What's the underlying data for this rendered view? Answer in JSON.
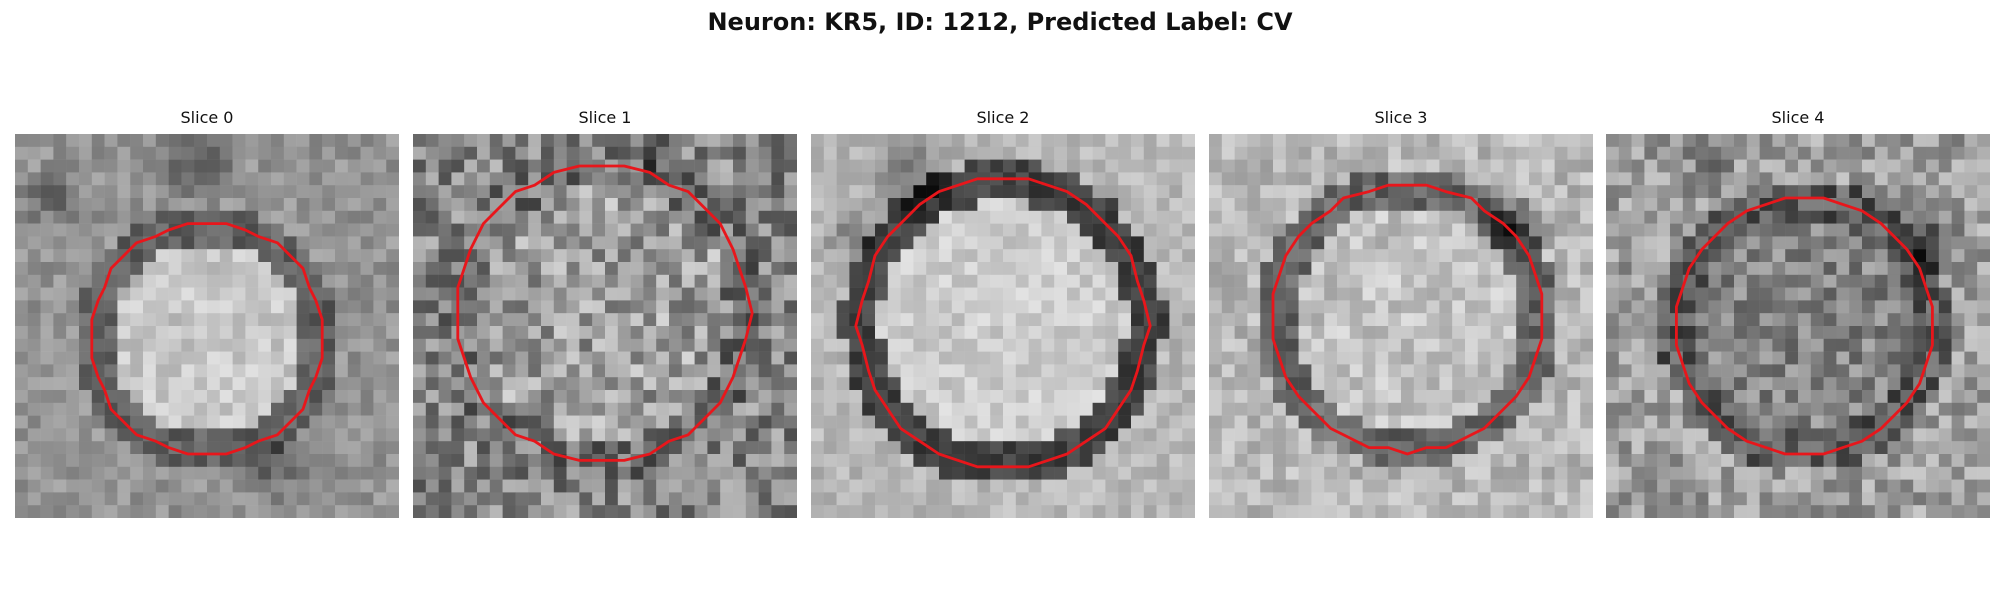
{
  "figure": {
    "title": "Neuron: KR5, ID: 1212, Predicted Label: CV"
  },
  "slices": [
    {
      "label": "Slice 0"
    },
    {
      "label": "Slice 1"
    },
    {
      "label": "Slice 2"
    },
    {
      "label": "Slice 3"
    },
    {
      "label": "Slice 4"
    }
  ],
  "colors": {
    "contour": "#e8161b",
    "background": "#ffffff"
  }
}
